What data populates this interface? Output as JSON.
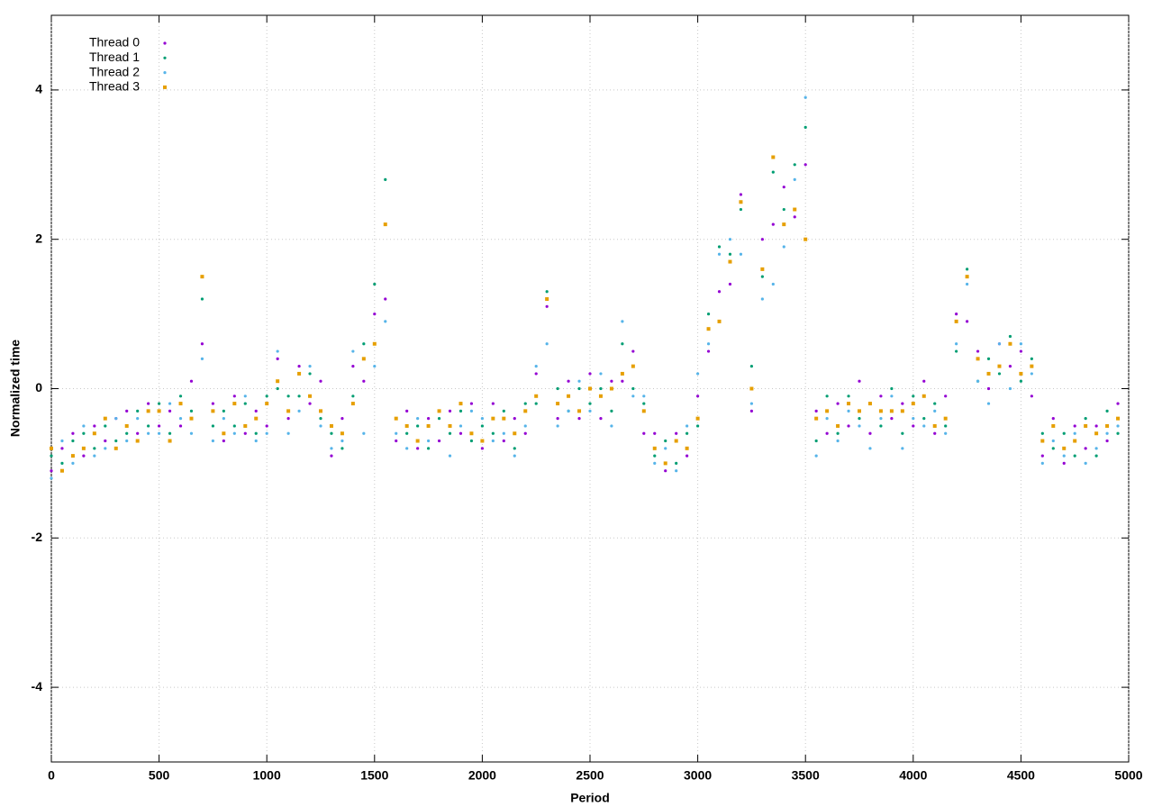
{
  "chart_data": {
    "type": "scatter",
    "xlabel": "Period",
    "ylabel": "Normalized time",
    "xlim": [
      0,
      5000
    ],
    "ylim": [
      -5,
      5
    ],
    "xticks": [
      0,
      500,
      1000,
      1500,
      2000,
      2500,
      3000,
      3500,
      4000,
      4500,
      5000
    ],
    "yticks": [
      -4,
      -2,
      0,
      2,
      4
    ],
    "grid": true,
    "legend": "top-left",
    "x": [
      0,
      50,
      100,
      150,
      200,
      250,
      300,
      350,
      400,
      450,
      500,
      550,
      600,
      650,
      700,
      750,
      800,
      850,
      900,
      950,
      1000,
      1050,
      1100,
      1150,
      1200,
      1250,
      1300,
      1350,
      1400,
      1450,
      1500,
      1550,
      1600,
      1650,
      1700,
      1750,
      1800,
      1850,
      1900,
      1950,
      2000,
      2050,
      2100,
      2150,
      2200,
      2250,
      2300,
      2350,
      2400,
      2450,
      2500,
      2550,
      2600,
      2650,
      2700,
      2750,
      2800,
      2850,
      2900,
      2950,
      3000,
      3050,
      3100,
      3150,
      3200,
      3250,
      3300,
      3350,
      3400,
      3450,
      3500,
      3550,
      3600,
      3650,
      3700,
      3750,
      3800,
      3850,
      3900,
      3950,
      4000,
      4050,
      4100,
      4150,
      4200,
      4250,
      4300,
      4350,
      4400,
      4450,
      4500,
      4550,
      4600,
      4650,
      4700,
      4750,
      4800,
      4850,
      4900,
      4950
    ],
    "series": [
      {
        "name": "Thread 0",
        "color": "#9400d3",
        "marker": "dot",
        "values": [
          -1.1,
          -0.8,
          -0.6,
          -0.9,
          -0.5,
          -0.7,
          -0.4,
          -0.3,
          -0.6,
          -0.2,
          -0.5,
          -0.3,
          -0.5,
          0.1,
          0.6,
          -0.2,
          -0.7,
          -0.1,
          -0.6,
          -0.3,
          -0.5,
          0.4,
          -0.4,
          0.3,
          -0.2,
          0.1,
          -0.9,
          -0.4,
          0.3,
          0.1,
          1.0,
          1.2,
          -0.7,
          -0.3,
          -0.8,
          -0.4,
          -0.7,
          -0.3,
          -0.6,
          -0.2,
          -0.8,
          -0.2,
          -0.7,
          -0.4,
          -0.6,
          0.2,
          1.1,
          -0.4,
          0.1,
          -0.4,
          0.2,
          -0.4,
          0.1,
          0.1,
          0.5,
          -0.6,
          -0.6,
          -1.1,
          -0.6,
          -0.9,
          -0.1,
          0.5,
          1.3,
          1.4,
          2.6,
          -0.3,
          2.0,
          2.2,
          2.7,
          2.3,
          3.0,
          -0.3,
          -0.6,
          -0.2,
          -0.5,
          0.1,
          -0.6,
          -0.1,
          -0.4,
          -0.2,
          -0.5,
          0.1,
          -0.6,
          -0.1,
          1.0,
          0.9,
          0.5,
          0.0,
          0.6,
          0.3,
          0.5,
          -0.1,
          -0.9,
          -0.4,
          -1.0,
          -0.5,
          -0.8,
          -0.5,
          -0.7,
          -0.2
        ]
      },
      {
        "name": "Thread 1",
        "color": "#009e73",
        "marker": "dot",
        "values": [
          -0.9,
          -1.0,
          -0.7,
          -0.6,
          -0.8,
          -0.5,
          -0.7,
          -0.6,
          -0.3,
          -0.5,
          -0.2,
          -0.6,
          -0.1,
          -0.3,
          1.2,
          -0.5,
          -0.3,
          -0.5,
          -0.2,
          -0.6,
          -0.1,
          0.0,
          -0.1,
          -0.1,
          0.2,
          -0.4,
          -0.6,
          -0.8,
          -0.1,
          0.6,
          1.4,
          2.8,
          -0.4,
          -0.6,
          -0.5,
          -0.8,
          -0.4,
          -0.6,
          -0.3,
          -0.7,
          -0.5,
          -0.6,
          -0.3,
          -0.8,
          -0.2,
          -0.2,
          1.3,
          0.0,
          -0.3,
          0.0,
          -0.2,
          0.0,
          -0.3,
          0.6,
          0.0,
          -0.2,
          -0.9,
          -0.7,
          -1.0,
          -0.6,
          -0.5,
          1.0,
          1.9,
          1.8,
          2.4,
          0.3,
          1.5,
          2.9,
          2.4,
          3.0,
          3.5,
          -0.7,
          -0.1,
          -0.6,
          -0.1,
          -0.4,
          -0.2,
          -0.5,
          0.0,
          -0.6,
          -0.1,
          -0.4,
          -0.2,
          -0.5,
          0.5,
          1.6,
          0.1,
          0.4,
          0.2,
          0.7,
          0.1,
          0.4,
          -0.6,
          -0.8,
          -0.6,
          -0.9,
          -0.4,
          -0.9,
          -0.3,
          -0.6
        ]
      },
      {
        "name": "Thread 2",
        "color": "#56b4e9",
        "marker": "dot",
        "values": [
          -1.2,
          -0.7,
          -1.0,
          -0.5,
          -0.9,
          -0.8,
          -0.4,
          -0.7,
          -0.4,
          -0.6,
          -0.6,
          -0.2,
          -0.4,
          -0.6,
          0.4,
          -0.7,
          -0.4,
          -0.6,
          -0.1,
          -0.7,
          -0.6,
          0.5,
          -0.6,
          -0.3,
          0.3,
          -0.5,
          -0.8,
          -0.7,
          0.5,
          -0.6,
          0.3,
          0.9,
          -0.6,
          -0.8,
          -0.4,
          -0.7,
          -0.3,
          -0.9,
          -0.5,
          -0.3,
          -0.4,
          -0.7,
          -0.6,
          -0.9,
          -0.5,
          0.3,
          0.6,
          -0.5,
          -0.3,
          0.1,
          -0.3,
          0.2,
          -0.5,
          0.9,
          -0.1,
          -0.1,
          -1.0,
          -0.8,
          -1.1,
          -0.5,
          0.2,
          0.6,
          1.8,
          2.0,
          1.8,
          -0.2,
          1.2,
          1.4,
          1.9,
          2.8,
          3.9,
          -0.9,
          -0.4,
          -0.7,
          -0.3,
          -0.5,
          -0.8,
          -0.4,
          -0.1,
          -0.8,
          -0.4,
          -0.5,
          -0.3,
          -0.6,
          0.6,
          1.4,
          0.1,
          -0.2,
          0.6,
          0.0,
          0.6,
          0.2,
          -1.0,
          -0.7,
          -0.9,
          -0.6,
          -1.0,
          -0.8,
          -0.6,
          -0.5
        ]
      },
      {
        "name": "Thread 3",
        "color": "#e69f00",
        "marker": "square",
        "values": [
          -0.8,
          -1.1,
          -0.9,
          -0.8,
          -0.6,
          -0.4,
          -0.8,
          -0.5,
          -0.7,
          -0.3,
          -0.3,
          -0.7,
          -0.2,
          -0.4,
          1.5,
          -0.3,
          -0.6,
          -0.2,
          -0.5,
          -0.4,
          -0.2,
          0.1,
          -0.3,
          0.2,
          -0.1,
          -0.3,
          -0.5,
          -0.6,
          -0.2,
          0.4,
          0.6,
          2.2,
          -0.4,
          -0.5,
          -0.7,
          -0.5,
          -0.3,
          -0.5,
          -0.2,
          -0.6,
          -0.7,
          -0.4,
          -0.4,
          -0.6,
          -0.3,
          -0.1,
          1.2,
          -0.2,
          -0.1,
          -0.3,
          0.0,
          -0.1,
          0.0,
          0.2,
          0.3,
          -0.3,
          -0.8,
          -1.0,
          -0.7,
          -0.8,
          -0.4,
          0.8,
          0.9,
          1.7,
          2.5,
          0.0,
          1.6,
          3.1,
          2.2,
          2.4,
          2.0,
          -0.4,
          -0.3,
          -0.5,
          -0.2,
          -0.3,
          -0.2,
          -0.3,
          -0.3,
          -0.3,
          -0.2,
          -0.1,
          -0.5,
          -0.4,
          0.9,
          1.5,
          0.4,
          0.2,
          0.3,
          0.6,
          0.2,
          0.3,
          -0.7,
          -0.5,
          -0.8,
          -0.7,
          -0.5,
          -0.6,
          -0.5,
          -0.4
        ]
      }
    ]
  }
}
